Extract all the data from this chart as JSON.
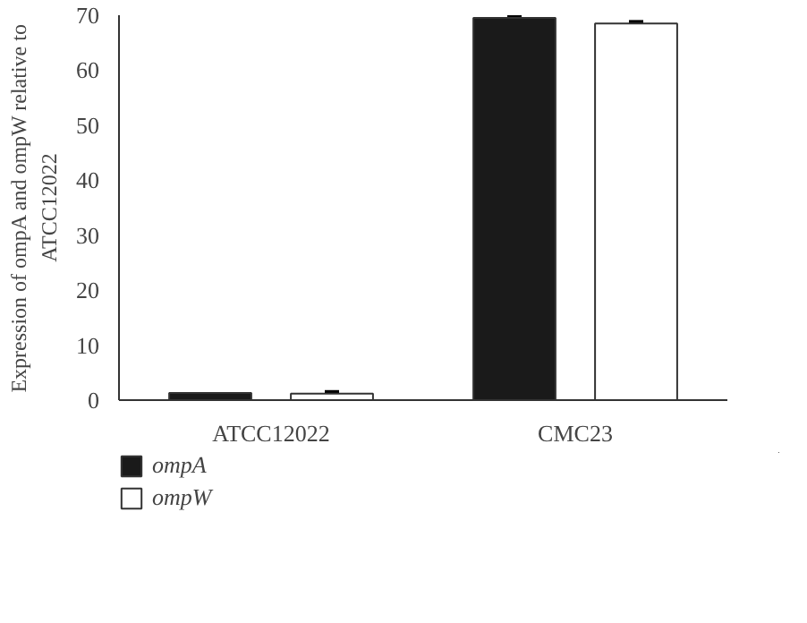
{
  "chart_data": {
    "type": "bar",
    "ylabel": "Expression of ompA and ompW relative to ATCC12022",
    "categories": [
      "ATCC12022",
      "CMC23"
    ],
    "series": [
      {
        "name": "ompA",
        "color": "#1a1a1a",
        "values": [
          1.3,
          69.5
        ],
        "errors": [
          null,
          0.2
        ]
      },
      {
        "name": "ompW",
        "color": "#ffffff",
        "values": [
          1.2,
          68.5
        ],
        "errors": [
          0.3,
          0.3
        ]
      }
    ],
    "ylim": [
      0,
      70
    ],
    "yticks": [
      0,
      10,
      20,
      30,
      40,
      50,
      60,
      70
    ],
    "grid": false,
    "legend": "bottom left"
  }
}
